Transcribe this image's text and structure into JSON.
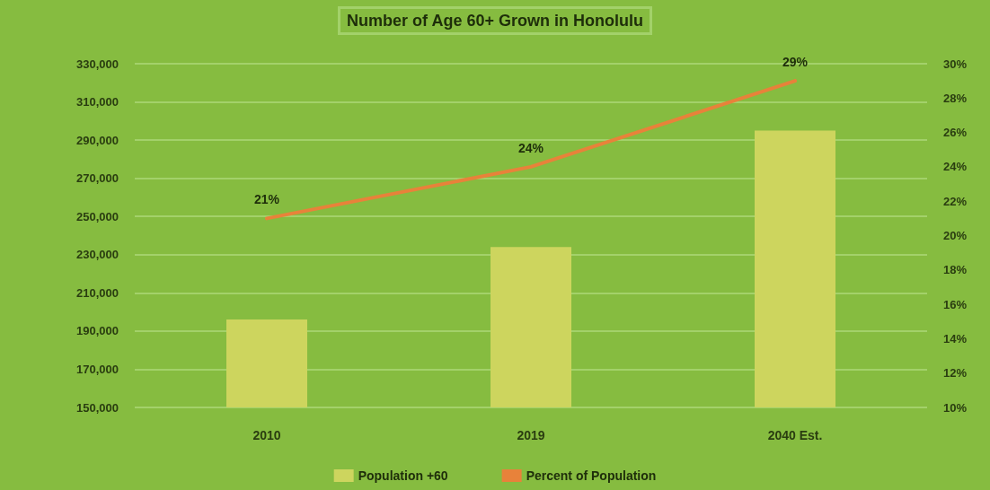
{
  "chart_data": {
    "type": "bar",
    "title": "Number of Age 60+ Grown in Honolulu",
    "categories": [
      "2010",
      "2019",
      "2040 Est."
    ],
    "series": [
      {
        "name": "Population +60",
        "color": "#cdd55e",
        "values": [
          196000,
          234000,
          295000
        ]
      },
      {
        "name": "Percent of Population",
        "type": "line",
        "axis": "y2",
        "color": "#e8823a",
        "values": [
          21,
          24,
          29
        ],
        "value_labels": [
          "21%",
          "24%",
          "29%"
        ]
      }
    ],
    "ylim": [
      150000,
      330000
    ],
    "yticks": [
      {
        "value": 150000,
        "label": "150,000"
      },
      {
        "value": 170000,
        "label": "170,000"
      },
      {
        "value": 190000,
        "label": "190,000"
      },
      {
        "value": 210000,
        "label": "210,000"
      },
      {
        "value": 230000,
        "label": "230,000"
      },
      {
        "value": 250000,
        "label": "250,000"
      },
      {
        "value": 270000,
        "label": "270,000"
      },
      {
        "value": 290000,
        "label": "290,000"
      },
      {
        "value": 310000,
        "label": "310,000"
      },
      {
        "value": 330000,
        "label": "330,000"
      }
    ],
    "y2lim": [
      10,
      30
    ],
    "y2ticks": [
      {
        "value": 10,
        "label": "10%"
      },
      {
        "value": 12,
        "label": "12%"
      },
      {
        "value": 14,
        "label": "14%"
      },
      {
        "value": 16,
        "label": "16%"
      },
      {
        "value": 18,
        "label": "18%"
      },
      {
        "value": 20,
        "label": "20%"
      },
      {
        "value": 22,
        "label": "22%"
      },
      {
        "value": 24,
        "label": "24%"
      },
      {
        "value": 26,
        "label": "26%"
      },
      {
        "value": 28,
        "label": "28%"
      },
      {
        "value": 30,
        "label": "30%"
      }
    ],
    "grid": "y",
    "legend": "bottom",
    "marker": "none"
  }
}
